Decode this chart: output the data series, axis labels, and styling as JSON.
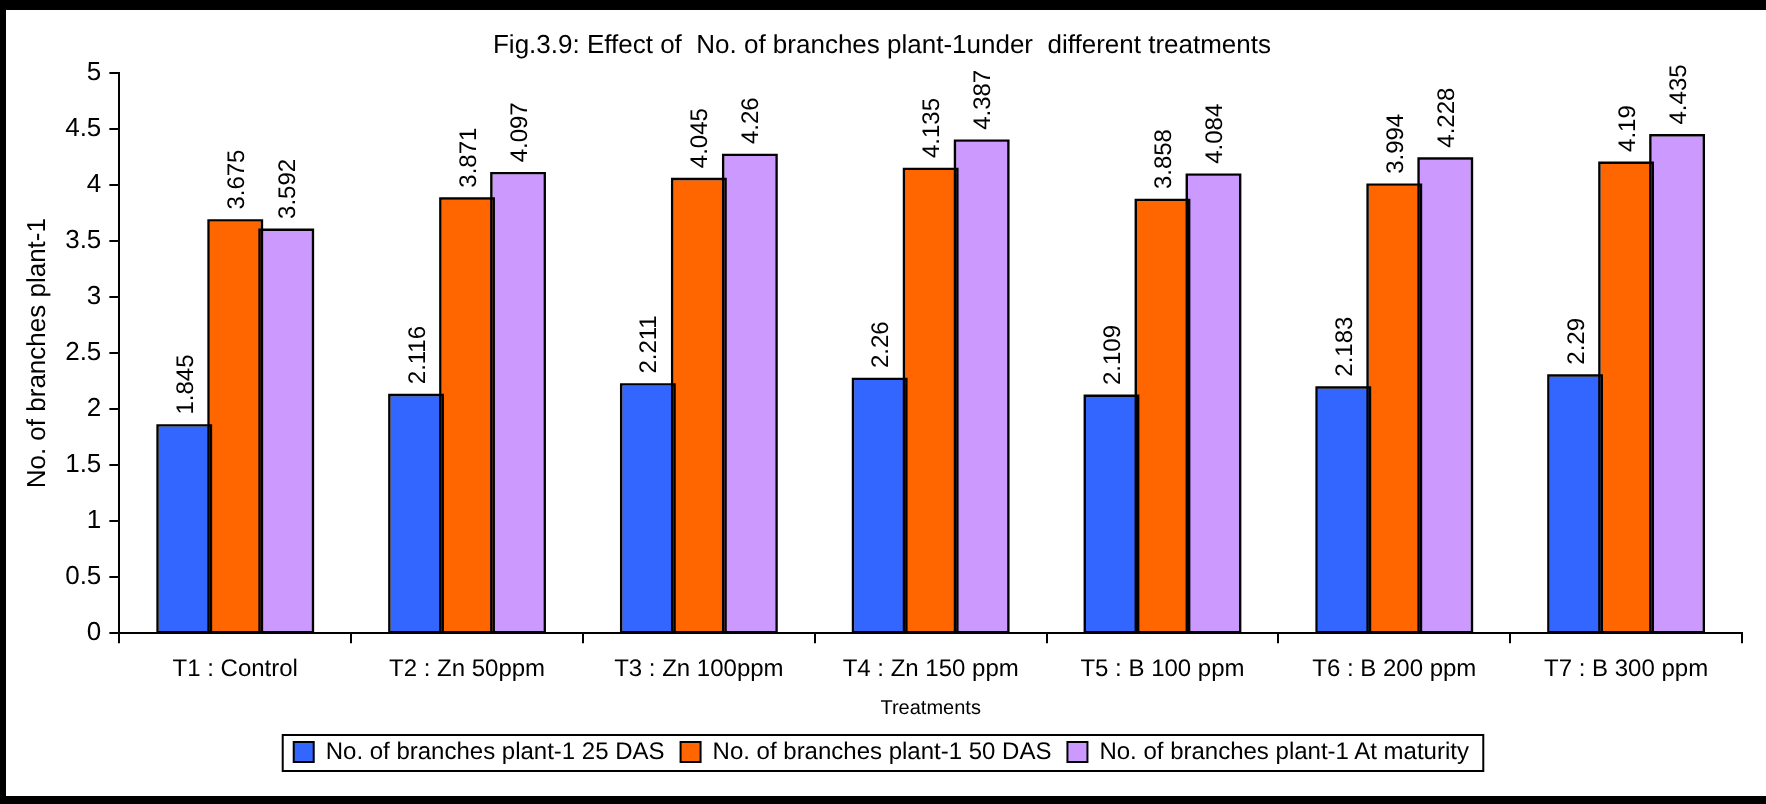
{
  "chart_data": {
    "type": "bar",
    "title": "Fig.3.9: Effect of  No. of branches plant-1under  different treatments",
    "xlabel": "Treatments",
    "ylabel": "No. of branches plant-1",
    "categories": [
      "T1 : Control",
      "T2 : Zn 50ppm",
      "T3 : Zn 100ppm",
      "T4 : Zn 150 ppm",
      "T5 : B 100 ppm",
      "T6 : B 200 ppm",
      "T7 : B 300 ppm"
    ],
    "series": [
      {
        "name": "No. of branches plant-1 25 DAS",
        "color": "#3366ff",
        "values": [
          1.845,
          2.116,
          2.211,
          2.26,
          2.109,
          2.183,
          2.29
        ]
      },
      {
        "name": "No. of branches plant-1 50 DAS",
        "color": "#ff6600",
        "values": [
          3.675,
          3.871,
          4.045,
          4.135,
          3.858,
          3.994,
          4.19
        ]
      },
      {
        "name": "No. of branches plant-1 At maturity",
        "color": "#cc99ff",
        "values": [
          3.592,
          4.097,
          4.26,
          4.387,
          4.084,
          4.228,
          4.435
        ]
      }
    ],
    "ylim": [
      0,
      5
    ],
    "yticks": [
      0,
      0.5,
      1,
      1.5,
      2,
      2.5,
      3,
      3.5,
      4,
      4.5,
      5
    ],
    "legend": "bottom",
    "data_labels": true
  }
}
